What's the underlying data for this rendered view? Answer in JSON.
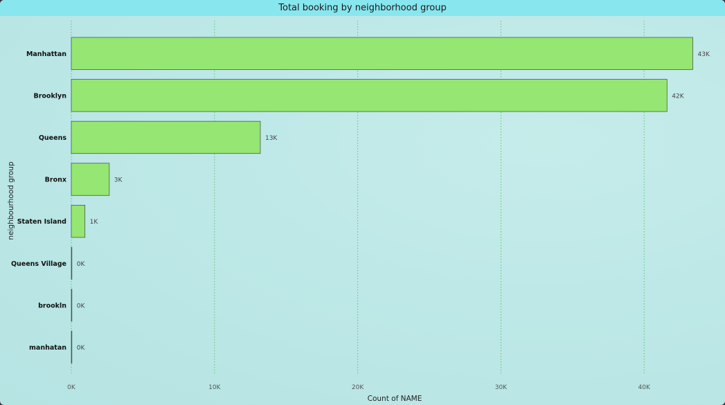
{
  "chart_data": {
    "type": "bar",
    "orientation": "horizontal",
    "title": "Total booking by neighborhood group",
    "xlabel": "Count of NAME",
    "ylabel": "neighbourhood group",
    "categories": [
      "Manhattan",
      "Brooklyn",
      "Queens",
      "Bronx",
      "Staten Island",
      "Queens Village",
      "brookln",
      "manhatan"
    ],
    "values": [
      43400,
      41600,
      13200,
      2650,
      950,
      1,
      1,
      1
    ],
    "data_labels": [
      "43K",
      "42K",
      "13K",
      "3K",
      "1K",
      "0K",
      "0K",
      "0K"
    ],
    "xlim": [
      0,
      45000
    ],
    "x_ticks": [
      0,
      10000,
      20000,
      30000,
      40000
    ],
    "x_tick_labels": [
      "0K",
      "10K",
      "20K",
      "30K",
      "40K"
    ],
    "grid": "vertical dotted",
    "colors": {
      "bar": "#95e673",
      "bar_edge": "#4a5a4a",
      "title_bar": "#88e6ee",
      "grid": "#5fc46e"
    }
  }
}
